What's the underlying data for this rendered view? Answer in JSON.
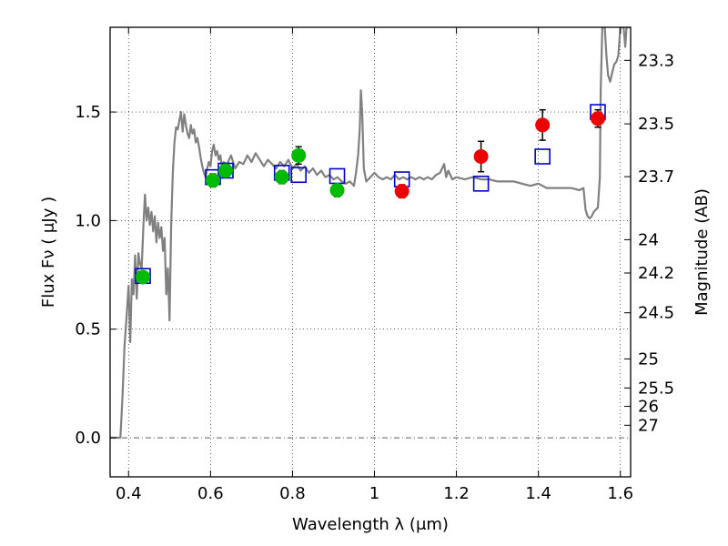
{
  "chart_data": {
    "type": "scatter",
    "xlabel": "Wavelength  λ (μm)",
    "ylabel": "Flux  Fν  ( μJy )",
    "ylabel_right": "Magnitude (AB)",
    "xlim": [
      0.355,
      1.625
    ],
    "ylim": [
      -0.18,
      1.89
    ],
    "x_ticks": [
      0.4,
      0.6,
      0.8,
      1.0,
      1.2,
      1.4,
      1.6
    ],
    "x_tick_labels": [
      "0.4",
      "0.6",
      "0.8",
      "1",
      "1.2",
      "1.4",
      "1.6"
    ],
    "y_ticks": [
      0.0,
      0.5,
      1.0,
      1.5
    ],
    "y_tick_labels": [
      "0.0",
      "0.5",
      "1.0",
      "1.5"
    ],
    "mag_ticks": [
      23.3,
      23.5,
      23.7,
      24,
      24.2,
      24.5,
      25,
      25.5,
      26,
      27
    ],
    "mag_tick_labels": [
      "23.3",
      "23.5",
      "23.7",
      "24",
      "24.2",
      "24.5",
      "25",
      "25.5",
      "26",
      "27"
    ],
    "grid": true,
    "colors": {
      "model": "#808080",
      "green": "#00bb00",
      "red": "#ee0000",
      "blue_box": "#0000cc"
    },
    "series": [
      {
        "kind": "line",
        "color": "#808080",
        "points": [
          [
            0.355,
            0.0
          ],
          [
            0.37,
            0.0
          ],
          [
            0.38,
            0.0
          ],
          [
            0.385,
            0.18
          ],
          [
            0.39,
            0.42
          ],
          [
            0.395,
            0.55
          ],
          [
            0.4,
            0.7
          ],
          [
            0.404,
            0.44
          ],
          [
            0.408,
            0.73
          ],
          [
            0.412,
            0.66
          ],
          [
            0.416,
            0.84
          ],
          [
            0.42,
            0.64
          ],
          [
            0.424,
            0.85
          ],
          [
            0.428,
            0.8
          ],
          [
            0.432,
            0.78
          ],
          [
            0.436,
            0.97
          ],
          [
            0.44,
            1.12
          ],
          [
            0.444,
            1.0
          ],
          [
            0.448,
            1.06
          ],
          [
            0.452,
            0.98
          ],
          [
            0.456,
            1.04
          ],
          [
            0.46,
            0.95
          ],
          [
            0.464,
            1.02
          ],
          [
            0.468,
            0.9
          ],
          [
            0.472,
            0.99
          ],
          [
            0.476,
            0.92
          ],
          [
            0.48,
            0.97
          ],
          [
            0.484,
            0.86
          ],
          [
            0.488,
            0.92
          ],
          [
            0.492,
            0.66
          ],
          [
            0.496,
            0.78
          ],
          [
            0.5,
            0.54
          ],
          [
            0.504,
            0.98
          ],
          [
            0.508,
            1.22
          ],
          [
            0.512,
            1.36
          ],
          [
            0.516,
            1.43
          ],
          [
            0.52,
            1.42
          ],
          [
            0.524,
            1.46
          ],
          [
            0.528,
            1.5
          ],
          [
            0.532,
            1.41
          ],
          [
            0.536,
            1.49
          ],
          [
            0.54,
            1.44
          ],
          [
            0.544,
            1.4
          ],
          [
            0.548,
            1.38
          ],
          [
            0.552,
            1.44
          ],
          [
            0.556,
            1.4
          ],
          [
            0.56,
            1.42
          ],
          [
            0.564,
            1.36
          ],
          [
            0.568,
            1.38
          ],
          [
            0.572,
            1.34
          ],
          [
            0.576,
            1.29
          ],
          [
            0.58,
            1.25
          ],
          [
            0.584,
            1.22
          ],
          [
            0.588,
            1.2
          ],
          [
            0.592,
            1.24
          ],
          [
            0.596,
            1.27
          ],
          [
            0.6,
            1.25
          ],
          [
            0.604,
            1.32
          ],
          [
            0.608,
            1.35
          ],
          [
            0.612,
            1.3
          ],
          [
            0.616,
            1.32
          ],
          [
            0.62,
            1.28
          ],
          [
            0.624,
            1.3
          ],
          [
            0.628,
            1.24
          ],
          [
            0.632,
            1.27
          ],
          [
            0.64,
            1.26
          ],
          [
            0.65,
            1.3
          ],
          [
            0.66,
            1.24
          ],
          [
            0.67,
            1.27
          ],
          [
            0.68,
            1.26
          ],
          [
            0.69,
            1.3
          ],
          [
            0.7,
            1.27
          ],
          [
            0.71,
            1.31
          ],
          [
            0.72,
            1.28
          ],
          [
            0.73,
            1.25
          ],
          [
            0.74,
            1.28
          ],
          [
            0.75,
            1.26
          ],
          [
            0.76,
            1.24
          ],
          [
            0.77,
            1.27
          ],
          [
            0.78,
            1.25
          ],
          [
            0.79,
            1.28
          ],
          [
            0.8,
            1.24
          ],
          [
            0.81,
            1.26
          ],
          [
            0.82,
            1.23
          ],
          [
            0.83,
            1.25
          ],
          [
            0.84,
            1.22
          ],
          [
            0.85,
            1.24
          ],
          [
            0.86,
            1.21
          ],
          [
            0.87,
            1.23
          ],
          [
            0.88,
            1.2
          ],
          [
            0.89,
            1.21
          ],
          [
            0.9,
            1.19
          ],
          [
            0.91,
            1.2
          ],
          [
            0.92,
            1.18
          ],
          [
            0.93,
            1.17
          ],
          [
            0.94,
            1.18
          ],
          [
            0.95,
            1.16
          ],
          [
            0.955,
            1.22
          ],
          [
            0.96,
            1.3
          ],
          [
            0.964,
            1.42
          ],
          [
            0.967,
            1.6
          ],
          [
            0.97,
            1.5
          ],
          [
            0.974,
            1.24
          ],
          [
            0.98,
            1.18
          ],
          [
            0.99,
            1.2
          ],
          [
            1.0,
            1.22
          ],
          [
            1.01,
            1.2
          ],
          [
            1.02,
            1.19
          ],
          [
            1.03,
            1.2
          ],
          [
            1.04,
            1.19
          ],
          [
            1.05,
            1.21
          ],
          [
            1.06,
            1.19
          ],
          [
            1.07,
            1.2
          ],
          [
            1.08,
            1.19
          ],
          [
            1.09,
            1.2
          ],
          [
            1.1,
            1.19
          ],
          [
            1.11,
            1.2
          ],
          [
            1.12,
            1.19
          ],
          [
            1.13,
            1.2
          ],
          [
            1.14,
            1.19
          ],
          [
            1.15,
            1.21
          ],
          [
            1.16,
            1.22
          ],
          [
            1.17,
            1.26
          ],
          [
            1.175,
            1.2
          ],
          [
            1.18,
            1.23
          ],
          [
            1.19,
            1.19
          ],
          [
            1.2,
            1.2
          ],
          [
            1.22,
            1.19
          ],
          [
            1.24,
            1.2
          ],
          [
            1.26,
            1.19
          ],
          [
            1.28,
            1.19
          ],
          [
            1.3,
            1.18
          ],
          [
            1.32,
            1.18
          ],
          [
            1.34,
            1.18
          ],
          [
            1.36,
            1.17
          ],
          [
            1.38,
            1.16
          ],
          [
            1.4,
            1.17
          ],
          [
            1.42,
            1.15
          ],
          [
            1.44,
            1.15
          ],
          [
            1.46,
            1.15
          ],
          [
            1.48,
            1.15
          ],
          [
            1.5,
            1.14
          ],
          [
            1.51,
            1.15
          ],
          [
            1.515,
            1.05
          ],
          [
            1.52,
            1.02
          ],
          [
            1.525,
            1.01
          ],
          [
            1.53,
            1.02
          ],
          [
            1.535,
            1.04
          ],
          [
            1.54,
            1.05
          ],
          [
            1.545,
            1.06
          ],
          [
            1.55,
            1.2
          ],
          [
            1.552,
            1.6
          ],
          [
            1.556,
            1.89
          ],
          [
            1.562,
            1.89
          ],
          [
            1.566,
            1.76
          ],
          [
            1.57,
            1.67
          ],
          [
            1.575,
            1.64
          ],
          [
            1.58,
            1.68
          ],
          [
            1.585,
            1.72
          ],
          [
            1.59,
            1.73
          ],
          [
            1.595,
            1.76
          ],
          [
            1.6,
            1.89
          ],
          [
            1.608,
            1.89
          ],
          [
            1.612,
            1.8
          ],
          [
            1.615,
            1.89
          ],
          [
            1.625,
            1.89
          ]
        ]
      },
      {
        "kind": "box",
        "color": "#0000cc",
        "points": [
          [
            0.435,
            0.745
          ],
          [
            0.606,
            1.2
          ],
          [
            0.637,
            1.23
          ],
          [
            0.774,
            1.22
          ],
          [
            0.815,
            1.21
          ],
          [
            0.909,
            1.205
          ],
          [
            1.067,
            1.19
          ],
          [
            1.26,
            1.17
          ],
          [
            1.41,
            1.295
          ],
          [
            1.545,
            1.5
          ]
        ]
      },
      {
        "kind": "circle",
        "color": "#00bb00",
        "points": [
          {
            "x": 0.435,
            "y": 0.74,
            "err": 0.02
          },
          {
            "x": 0.606,
            "y": 1.185,
            "err": 0.03
          },
          {
            "x": 0.637,
            "y": 1.23,
            "err": 0.03
          },
          {
            "x": 0.774,
            "y": 1.2,
            "err": 0.03
          },
          {
            "x": 0.815,
            "y": 1.3,
            "err": 0.04
          },
          {
            "x": 0.909,
            "y": 1.14,
            "err": 0.03
          }
        ]
      },
      {
        "kind": "circle",
        "color": "#ee0000",
        "points": [
          {
            "x": 1.067,
            "y": 1.135,
            "err": 0.03
          },
          {
            "x": 1.26,
            "y": 1.295,
            "err": 0.07
          },
          {
            "x": 1.41,
            "y": 1.44,
            "err": 0.07
          },
          {
            "x": 1.545,
            "y": 1.47,
            "err": 0.04
          }
        ]
      }
    ]
  }
}
